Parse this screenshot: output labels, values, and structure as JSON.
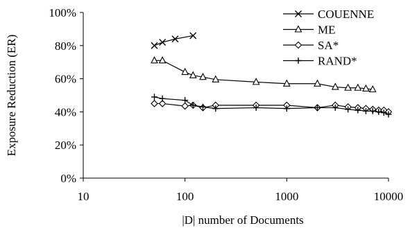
{
  "chart_data": {
    "type": "line",
    "xlabel": "|D| number of Documents",
    "ylabel": "Exposure Reduction (ER)",
    "xscale": "log",
    "xlim": [
      10,
      10000
    ],
    "ylim": [
      0,
      100
    ],
    "xticks": [
      10,
      100,
      1000,
      10000
    ],
    "xtick_labels": [
      "10",
      "100",
      "1000",
      "10000"
    ],
    "yticks": [
      0,
      20,
      40,
      60,
      80,
      100
    ],
    "ytick_labels": [
      "0%",
      "20%",
      "40%",
      "60%",
      "80%",
      "100%"
    ],
    "grid": false,
    "legend_position": "top-right",
    "series": [
      {
        "name": "COUENNE",
        "marker": "x",
        "x": [
          50,
          60,
          80,
          120
        ],
        "y": [
          80,
          82,
          84,
          86
        ]
      },
      {
        "name": "ME",
        "marker": "triangle",
        "x": [
          50,
          60,
          100,
          120,
          150,
          200,
          500,
          1000,
          2000,
          3000,
          4000,
          5000,
          6000,
          7000
        ],
        "y": [
          71,
          71,
          64,
          62,
          61,
          59.5,
          58,
          57,
          57,
          55,
          54.5,
          54.5,
          54,
          53.5
        ]
      },
      {
        "name": "SA*",
        "marker": "diamond",
        "x": [
          50,
          60,
          100,
          120,
          150,
          200,
          500,
          1000,
          2000,
          3000,
          4000,
          5000,
          6000,
          7000,
          8000,
          9000,
          10000
        ],
        "y": [
          45,
          45,
          43.5,
          44,
          42.5,
          44,
          44,
          44,
          42.5,
          44,
          43,
          42.5,
          42,
          41.5,
          41,
          41,
          40
        ]
      },
      {
        "name": "RAND*",
        "marker": "plus",
        "x": [
          50,
          60,
          100,
          120,
          150,
          200,
          500,
          1000,
          2000,
          3000,
          4000,
          5000,
          6000,
          7000,
          8000,
          9000,
          10000
        ],
        "y": [
          49,
          48,
          47,
          44,
          43,
          42,
          42.5,
          42,
          42.5,
          42.5,
          41.5,
          41,
          40.5,
          40.5,
          40,
          39.5,
          38.5
        ]
      }
    ]
  }
}
